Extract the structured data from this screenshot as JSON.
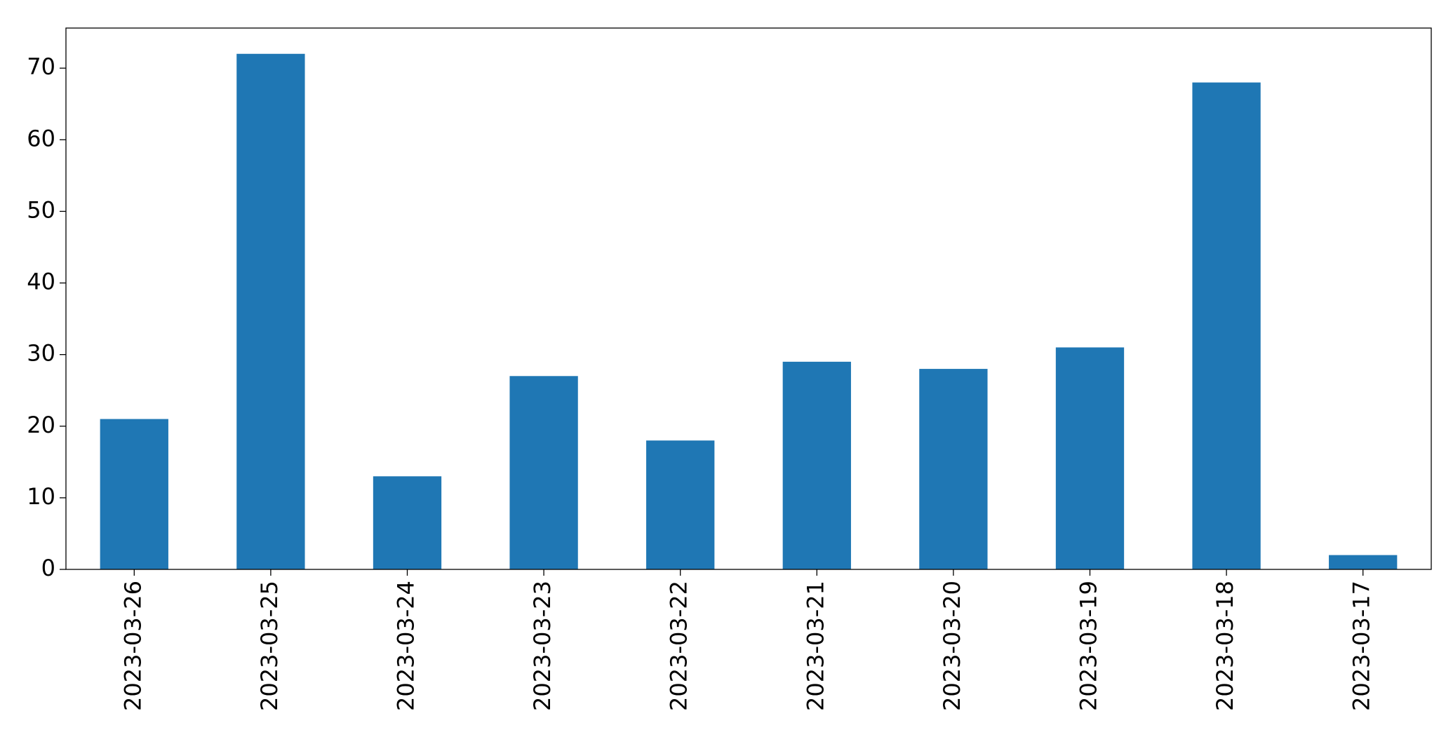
{
  "chart_data": {
    "type": "bar",
    "categories": [
      "2023-03-26",
      "2023-03-25",
      "2023-03-24",
      "2023-03-23",
      "2023-03-22",
      "2023-03-21",
      "2023-03-20",
      "2023-03-19",
      "2023-03-18",
      "2023-03-17"
    ],
    "values": [
      21,
      72,
      13,
      27,
      18,
      29,
      28,
      31,
      68,
      2
    ],
    "color": "#1f77b4",
    "ylim": [
      0,
      75.6
    ],
    "yticks": [
      0,
      10,
      20,
      30,
      40,
      50,
      60,
      70
    ],
    "grid": false
  }
}
